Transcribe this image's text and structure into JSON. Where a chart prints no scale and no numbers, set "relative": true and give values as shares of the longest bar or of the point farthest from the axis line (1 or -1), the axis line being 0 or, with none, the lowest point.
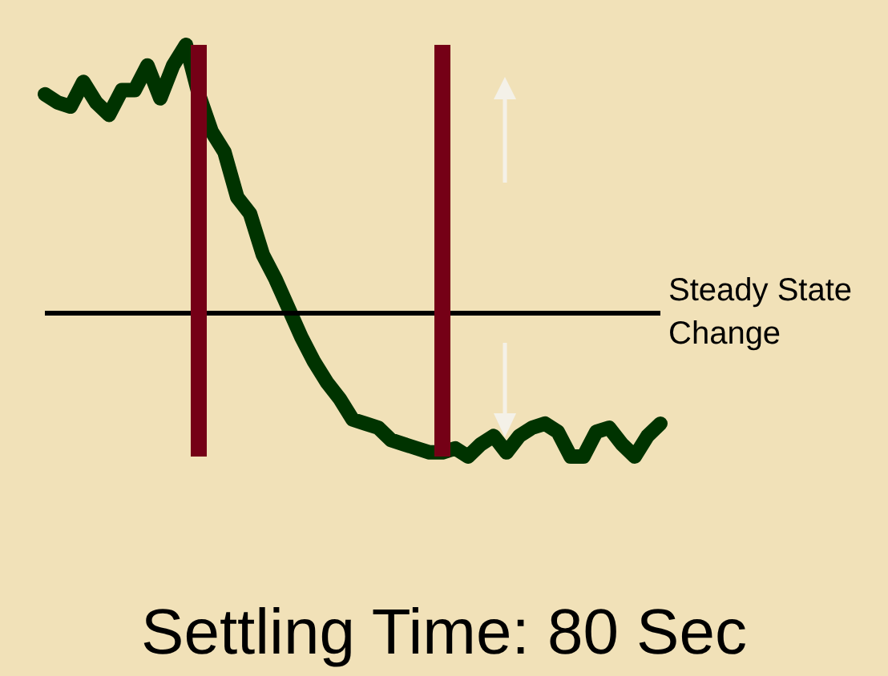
{
  "chart_data": {
    "type": "line",
    "title": "Settling Time: 80 Sec",
    "relative": true,
    "categories": [
      null,
      null,
      null,
      null,
      null,
      null,
      null,
      null,
      null,
      null,
      null,
      null,
      null,
      null,
      null,
      null,
      null,
      null,
      null,
      null,
      null,
      null,
      null,
      null,
      null,
      null,
      null,
      null,
      null,
      null,
      null,
      null,
      null,
      null,
      null,
      null,
      null,
      null,
      null,
      null,
      null,
      null,
      null,
      null,
      null,
      null,
      null,
      null,
      null
    ],
    "series": [
      {
        "color": "#003300",
        "values": [
          0.88,
          0.86,
          0.85,
          0.91,
          0.86,
          0.83,
          0.89,
          0.89,
          0.95,
          0.87,
          0.95,
          1,
          0.88,
          0.79,
          0.74,
          0.63,
          0.59,
          0.49,
          0.43,
          0.36,
          0.29,
          0.23,
          0.18,
          0.14,
          0.09,
          0.08,
          0.07,
          0.04,
          0.03,
          0.02,
          0.01,
          0.01,
          0.02,
          0,
          0.03,
          0.05,
          0.01,
          0.05,
          0.07,
          0.08,
          0.06,
          0,
          0,
          0.06,
          0.07,
          0.03,
          0,
          0.05,
          0.08
        ]
      }
    ],
    "ref_lines": [
      {
        "axis": "y",
        "value": 0.35,
        "label": "Steady State Change",
        "color": "#000000"
      }
    ],
    "line_style": "solid"
  }
}
